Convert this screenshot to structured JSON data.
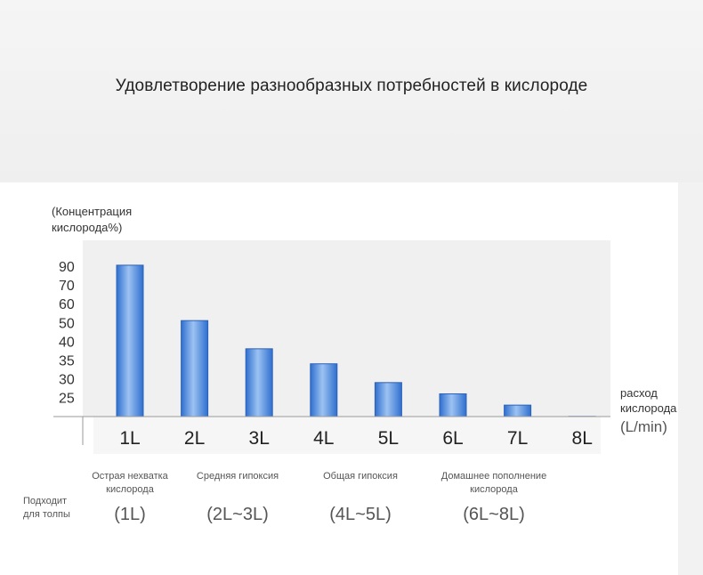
{
  "title": "Удовлетворение разнообразных потребностей в кислороде",
  "chart_data": {
    "type": "bar",
    "title": "Удовлетворение разнообразных потребностей в кислороде",
    "ylabel": "(Концентрация кислорода%)",
    "xlabel": "расход кислорода",
    "xunit": "(L/min)",
    "y_ticks": [
      "90",
      "70",
      "60",
      "50",
      "40",
      "35",
      "30",
      "25"
    ],
    "y_tick_values": [
      90,
      70,
      60,
      50,
      40,
      35,
      30,
      25
    ],
    "categories": [
      "1L",
      "2L",
      "3L",
      "4L",
      "5L",
      "6L",
      "7L",
      "8L"
    ],
    "values": [
      91,
      51,
      38,
      34,
      29,
      26,
      23,
      20
    ],
    "bar_color": "#4a86d9",
    "plot_background": "#f0f0f0",
    "grid": false,
    "legend": "none"
  },
  "needs": [
    {
      "label": "Острая нехватка кислорода",
      "range": "(1L)"
    },
    {
      "label": "Средняя гипоксия",
      "range": "(2L~3L)"
    },
    {
      "label": "Общая гипоксия",
      "range": "(4L~5L)"
    },
    {
      "label": "Домашнее пополнение кислорода",
      "range": "(6L~8L)"
    }
  ],
  "suitable_label": "Подходит для толпы"
}
